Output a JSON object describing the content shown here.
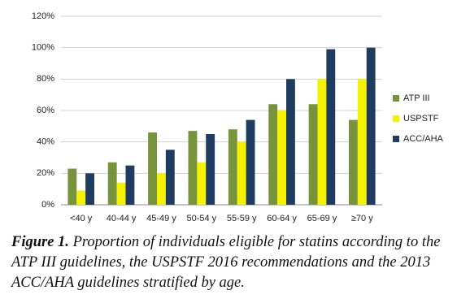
{
  "chart_data": {
    "type": "bar",
    "categories": [
      "<40 y",
      "40-44 y",
      "45-49 y",
      "50-54 y",
      "55-59 y",
      "60-64 y",
      "65-69 y",
      "≥70 y"
    ],
    "series": [
      {
        "name": "ATP III",
        "color": "#77933c",
        "values": [
          23,
          27,
          46,
          47,
          48,
          64,
          64,
          54
        ]
      },
      {
        "name": "USPSTF",
        "color": "#f5f200",
        "values": [
          9,
          14,
          20,
          27,
          40,
          60,
          80,
          80
        ]
      },
      {
        "name": "ACC/AHA",
        "color": "#1f3b5f",
        "values": [
          20,
          25,
          35,
          45,
          54,
          80,
          99,
          100
        ]
      }
    ],
    "ylim": [
      0,
      120
    ],
    "yticks": [
      {
        "value": 0,
        "label": "0%"
      },
      {
        "value": 20,
        "label": "20%"
      },
      {
        "value": 40,
        "label": "40%"
      },
      {
        "value": 60,
        "label": "60%"
      },
      {
        "value": 80,
        "label": "80%"
      },
      {
        "value": 100,
        "label": "100%"
      },
      {
        "value": 120,
        "label": "120%"
      }
    ],
    "grid": true,
    "legend": "right",
    "caption_label": "Figure 1.",
    "caption": "Proportion of individuals eligible for statins according to the ATP III guidelines, the USPSTF 2016 recommendations and the 2013 ACC/AHA guidelines stratified by age."
  }
}
